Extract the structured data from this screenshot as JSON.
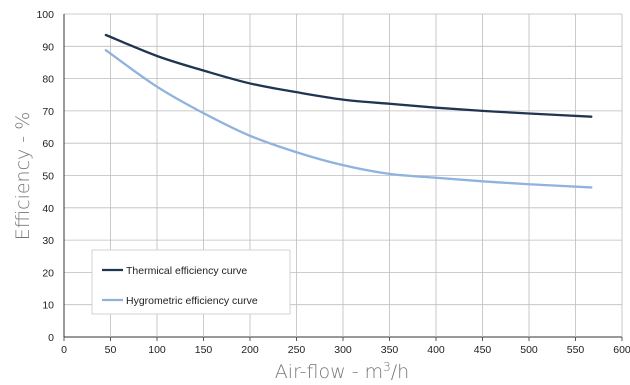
{
  "chart_data": {
    "type": "line",
    "xlabel": "Air-flow - m³/h",
    "xlabel_main": "Air-flow - m",
    "xlabel_sup": "3",
    "xlabel_tail": "/h",
    "ylabel": "Efficiency - %",
    "xlim": [
      0,
      600
    ],
    "ylim": [
      0,
      100
    ],
    "x_ticks": [
      "0",
      "50",
      "100",
      "150",
      "200",
      "250",
      "300",
      "350",
      "400",
      "450",
      "500",
      "550",
      "600"
    ],
    "y_ticks": [
      "0",
      "10",
      "20",
      "30",
      "40",
      "50",
      "60",
      "70",
      "80",
      "90",
      "100"
    ],
    "grid": true,
    "legend_position": "bottom-left",
    "series": [
      {
        "name": "Thermical efficiency curve",
        "color": "#1f3552",
        "x": [
          45,
          100,
          150,
          200,
          250,
          300,
          350,
          400,
          450,
          500,
          567
        ],
        "y": [
          93.5,
          87.0,
          82.5,
          78.5,
          75.8,
          73.5,
          72.2,
          71.0,
          70.0,
          69.2,
          68.2
        ]
      },
      {
        "name": "Hygrometric efficiency curve",
        "color": "#8fb2de",
        "x": [
          45,
          100,
          150,
          200,
          250,
          300,
          350,
          400,
          450,
          500,
          567
        ],
        "y": [
          88.8,
          77.5,
          69.3,
          62.3,
          57.2,
          53.2,
          50.5,
          49.3,
          48.2,
          47.3,
          46.3
        ]
      }
    ]
  }
}
